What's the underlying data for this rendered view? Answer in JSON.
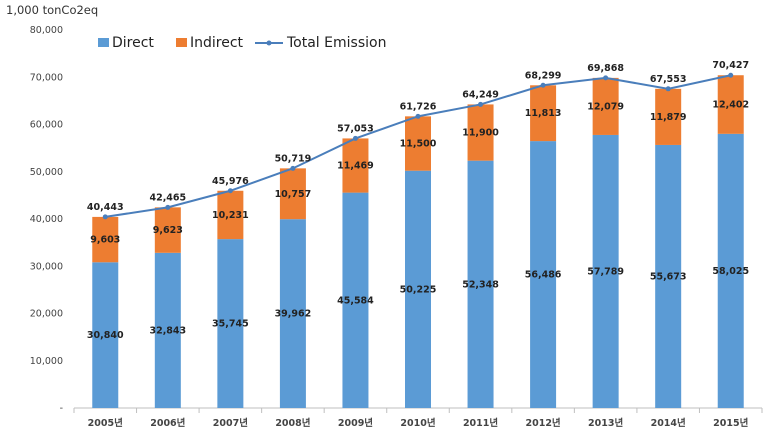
{
  "unit_label": "1,000 tonCo2eq",
  "colors": {
    "direct": "#5b9bd5",
    "indirect": "#ed7d31",
    "total": "#4a7ebb"
  },
  "chart_data": {
    "type": "bar",
    "stacked": true,
    "categories": [
      "2005년",
      "2006년",
      "2007년",
      "2008년",
      "2009년",
      "2010년",
      "2011년",
      "2012년",
      "2013년",
      "2014년",
      "2015년"
    ],
    "series": [
      {
        "name": "Direct",
        "type": "bar",
        "values": [
          30840,
          32843,
          35745,
          39962,
          45584,
          50225,
          52348,
          56486,
          57789,
          55673,
          58025
        ]
      },
      {
        "name": "Indirect",
        "type": "bar",
        "values": [
          9603,
          9623,
          10231,
          10757,
          11469,
          11500,
          11900,
          11813,
          12079,
          11879,
          12402
        ]
      },
      {
        "name": "Total Emission",
        "type": "line",
        "values": [
          40443,
          42465,
          45976,
          50719,
          57053,
          61726,
          64249,
          68299,
          69868,
          67553,
          70427
        ]
      }
    ],
    "direct_labels": [
      "30,840",
      "32,843",
      "35,745",
      "39,962",
      "45,584",
      "50,225",
      "52,348",
      "56,486",
      "57,789",
      "55,673",
      "58,025"
    ],
    "indirect_labels": [
      "9,603",
      "9,623",
      "10,231",
      "10,757",
      "11,469",
      "11,500",
      "11,900",
      "11,813",
      "12,079",
      "11,879",
      "12,402"
    ],
    "total_labels": [
      "40,443",
      "42,465",
      "45,976",
      "50,719",
      "57,053",
      "61,726",
      "64,249",
      "68,299",
      "69,868",
      "67,553",
      "70,427"
    ],
    "ylim": [
      0,
      80000
    ],
    "yticks": [
      0,
      10000,
      20000,
      30000,
      40000,
      50000,
      60000,
      70000,
      80000
    ],
    "ytick_labels": [
      "-",
      "10,000",
      "20,000",
      "30,000",
      "40,000",
      "50,000",
      "60,000",
      "70,000",
      "80,000"
    ],
    "grid": false,
    "legend_position": "top-left",
    "xlabel": "",
    "ylabel": ""
  }
}
